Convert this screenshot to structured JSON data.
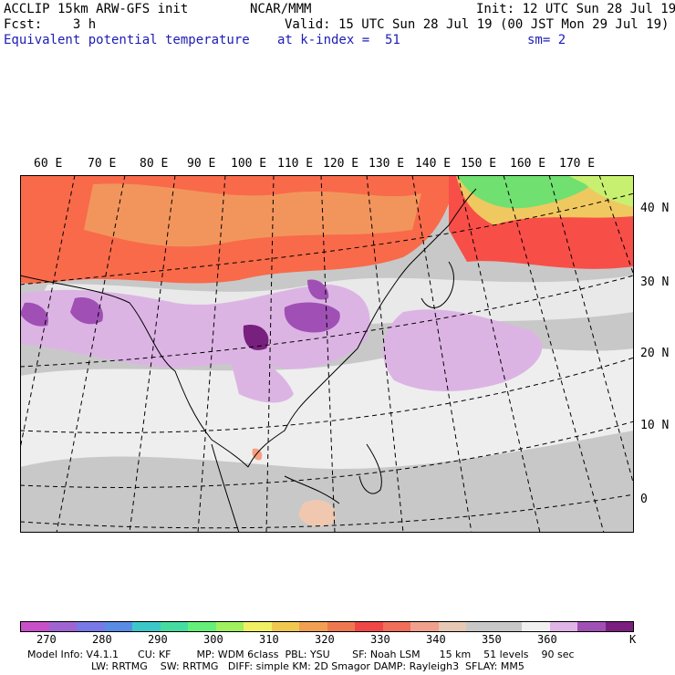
{
  "header": {
    "model": "ACCLIP 15km ARW-GFS init",
    "org": "NCAR/MMM",
    "init": "Init: 12 UTC Sun 28 Jul 19",
    "fcst": "Fcst:    3 h",
    "valid": "Valid: 15 UTC Sun 28 Jul 19 (00 JST Mon 29 Jul 19)",
    "field": "Equivalent potential temperature",
    "level": "at k-index =  51",
    "smooth": "sm= 2"
  },
  "map": {
    "lon_labels": [
      "60 E",
      "70 E",
      "80 E",
      "90 E",
      "100 E",
      "110 E",
      "120 E",
      "130 E",
      "140 E",
      "150 E",
      "160 E",
      "170 E"
    ],
    "lat_labels": [
      "40 N",
      "30 N",
      "20 N",
      "10 N",
      "0"
    ],
    "land_color": "#8c8c8c",
    "colors": {
      "bg_gray": "#c8c8c8",
      "light": "#eeeeee",
      "orange_red": "#fa6046",
      "red": "#f8504a",
      "salmon": "#f6a080",
      "lavender": "#dcb4e4",
      "purple": "#a050b4",
      "dark_purple": "#78207e",
      "green": "#70e070",
      "yellow": "#f0f070"
    }
  },
  "colorbar": {
    "colors": [
      "#c850c8",
      "#a064d2",
      "#7878e6",
      "#5a8ce6",
      "#3cc8c8",
      "#46dca0",
      "#64f078",
      "#a0f060",
      "#f0f064",
      "#f0c850",
      "#f0a050",
      "#f07850",
      "#f04646",
      "#f06e5a",
      "#f0a08c",
      "#e6c8b4",
      "#c8c8c8",
      "#c8c8c8",
      "#f0f0f0",
      "#e0b4e6",
      "#a050b4",
      "#7a1e80"
    ],
    "tick_labels": [
      "270",
      "280",
      "290",
      "300",
      "310",
      "320",
      "330",
      "340",
      "350",
      "360"
    ],
    "unit": "K"
  },
  "footer": {
    "line1": "Model Info: V4.1.1      CU: KF        MP: WDM 6class  PBL: YSU       SF: Noah LSM      15 km    51 levels    90 sec",
    "line2": "LW: RRTMG    SW: RRTMG   DIFF: simple KM: 2D Smagor DAMP: Rayleigh3  SFLAY: MM5"
  }
}
